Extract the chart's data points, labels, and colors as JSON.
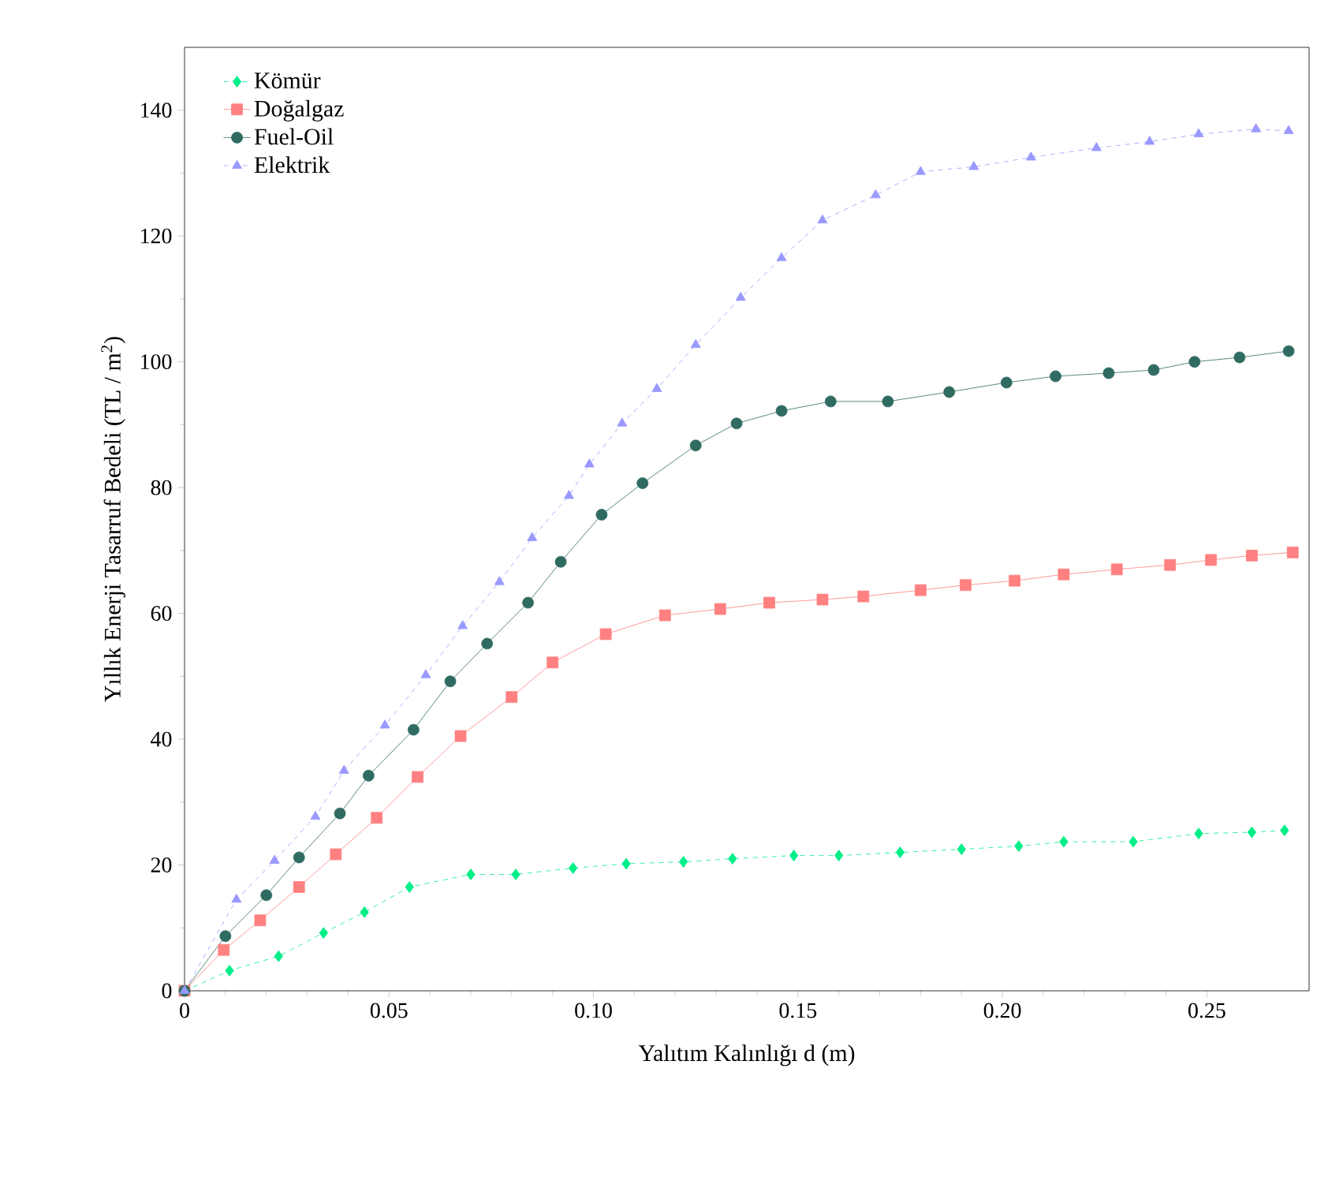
{
  "chart_data": {
    "type": "line",
    "xlabel": "Yalıtım Kalınlığı d (m)",
    "ylabel": "Yıllık Enerji Tasarruf Bedeli (TL / m$^{2}$)",
    "xlim": [
      0,
      0.275
    ],
    "ylim": [
      0,
      150
    ],
    "xticks": [
      {
        "value": 0,
        "label": "0"
      },
      0.05,
      {
        "value": 0.1,
        "label": "0.10"
      },
      0.15,
      {
        "value": 0.2,
        "label": "0.20"
      },
      0.25
    ],
    "yticks": [
      0,
      20,
      40,
      60,
      80,
      100,
      120,
      140
    ],
    "grid": false,
    "legend": "top left",
    "series": [
      {
        "name": "Kömür",
        "color": "#00ee88",
        "marker": "diamond",
        "line_style": "dashed",
        "x": [
          0,
          0.011,
          0.023,
          0.034,
          0.044,
          0.055,
          0.07,
          0.081,
          0.095,
          0.108,
          0.122,
          0.134,
          0.149,
          0.16,
          0.175,
          0.19,
          0.204,
          0.215,
          0.232,
          0.248,
          0.261,
          0.269
        ],
        "values": [
          0,
          3.2,
          5.5,
          9.2,
          12.5,
          16.5,
          18.5,
          18.5,
          19.5,
          20.2,
          20.5,
          21,
          21.5,
          21.5,
          22,
          22.5,
          23,
          23.7,
          23.7,
          25,
          25.2,
          25.5
        ]
      },
      {
        "name": "Doğalgaz",
        "color": "#ff8080",
        "marker": "square",
        "line_style": "solid",
        "x": [
          0,
          0.0096,
          0.0185,
          0.028,
          0.037,
          0.047,
          0.057,
          0.0675,
          0.08,
          0.09,
          0.103,
          0.1175,
          0.131,
          0.143,
          0.156,
          0.166,
          0.18,
          0.191,
          0.203,
          0.215,
          0.228,
          0.241,
          0.251,
          0.261,
          0.271
        ],
        "values": [
          0,
          6.5,
          11.2,
          16.5,
          21.7,
          27.5,
          34,
          40.5,
          46.7,
          52.2,
          56.7,
          59.7,
          60.7,
          61.7,
          62.2,
          62.7,
          63.7,
          64.5,
          65.2,
          66.2,
          67,
          67.7,
          68.5,
          69.2,
          69.7
        ]
      },
      {
        "name": "Fuel-Oil",
        "color": "#2f6b60",
        "marker": "circle",
        "line_style": "solid",
        "x": [
          0,
          0.01,
          0.02,
          0.028,
          0.038,
          0.045,
          0.056,
          0.065,
          0.074,
          0.084,
          0.092,
          0.102,
          0.112,
          0.125,
          0.135,
          0.146,
          0.158,
          0.172,
          0.187,
          0.201,
          0.213,
          0.226,
          0.237,
          0.247,
          0.258,
          0.27
        ],
        "values": [
          0,
          8.7,
          15.2,
          21.2,
          28.2,
          34.2,
          41.5,
          49.2,
          55.2,
          61.7,
          68.2,
          75.7,
          80.7,
          86.7,
          90.2,
          92.2,
          93.7,
          93.7,
          95.2,
          96.7,
          97.7,
          98.2,
          98.7,
          100,
          100.7,
          101.7
        ]
      },
      {
        "name": "Elektrik",
        "color": "#9999ff",
        "marker": "triangle",
        "line_style": "dashed",
        "x": [
          0,
          0.0127,
          0.022,
          0.032,
          0.039,
          0.049,
          0.059,
          0.068,
          0.077,
          0.085,
          0.094,
          0.099,
          0.107,
          0.1155,
          0.125,
          0.136,
          0.146,
          0.156,
          0.169,
          0.18,
          0.193,
          0.207,
          0.223,
          0.236,
          0.248,
          0.262,
          0.27
        ],
        "values": [
          0,
          14.5,
          20.7,
          27.7,
          35,
          42.2,
          50.2,
          58,
          65,
          72,
          78.7,
          83.7,
          90.2,
          95.7,
          102.7,
          110.2,
          116.5,
          122.5,
          126.5,
          130.2,
          131,
          132.5,
          134,
          135,
          136.2,
          137,
          136.7
        ]
      }
    ]
  }
}
